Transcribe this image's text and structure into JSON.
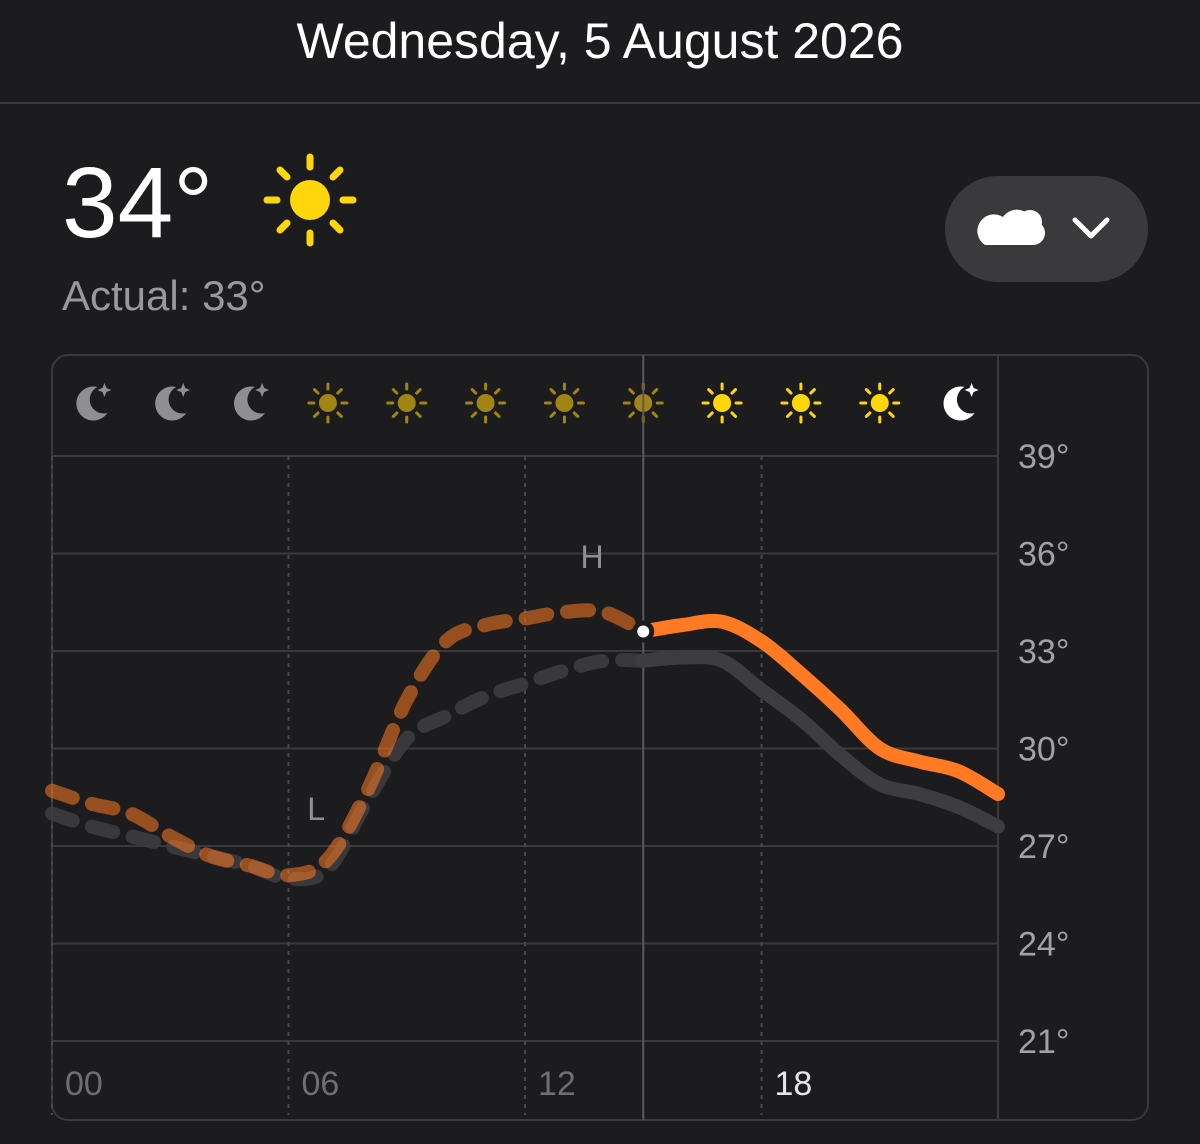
{
  "header": {
    "date": "Wednesday, 5 August 2026"
  },
  "current": {
    "temperature": "34°",
    "actual": "Actual: 33°"
  },
  "chart_data": {
    "type": "line",
    "x": [
      0,
      1,
      2,
      3,
      4,
      5,
      6,
      7,
      8,
      9,
      10,
      11,
      12,
      13,
      14,
      15,
      16,
      17,
      18,
      19,
      20,
      21,
      22,
      23,
      24
    ],
    "xlim": [
      0,
      24
    ],
    "xticks": [
      {
        "value": 0,
        "label": "00"
      },
      {
        "value": 6,
        "label": "06"
      },
      {
        "value": 12,
        "label": "12"
      },
      {
        "value": 18,
        "label": "18"
      }
    ],
    "ylim": [
      21,
      39
    ],
    "yticks": [
      {
        "value": 21,
        "label": "21°"
      },
      {
        "value": 24,
        "label": "24°"
      },
      {
        "value": 27,
        "label": "27°"
      },
      {
        "value": 30,
        "label": "30°"
      },
      {
        "value": 33,
        "label": "33°"
      },
      {
        "value": 36,
        "label": "36°"
      },
      {
        "value": 39,
        "label": "39°"
      }
    ],
    "now_x": 15,
    "annotations": [
      {
        "text": "H",
        "x": 13.7
      },
      {
        "text": "L",
        "x": 6.7
      }
    ],
    "grid": true,
    "series": [
      {
        "color": "#ff7a22",
        "values": [
          28.7,
          28.3,
          28.0,
          27.3,
          26.7,
          26.4,
          26.1,
          26.6,
          28.7,
          31.5,
          33.3,
          33.8,
          34.0,
          34.2,
          34.2,
          33.6,
          33.8,
          33.9,
          33.3,
          32.3,
          31.2,
          30.0,
          29.6,
          29.3,
          28.6
        ]
      },
      {
        "color": "#3d3d40",
        "values": [
          28.0,
          27.6,
          27.3,
          27.0,
          26.7,
          26.4,
          26.0,
          26.3,
          28.4,
          30.3,
          31.0,
          31.6,
          32.0,
          32.4,
          32.7,
          32.7,
          32.8,
          32.7,
          31.8,
          30.9,
          29.8,
          28.9,
          28.6,
          28.2,
          27.6
        ]
      }
    ]
  }
}
